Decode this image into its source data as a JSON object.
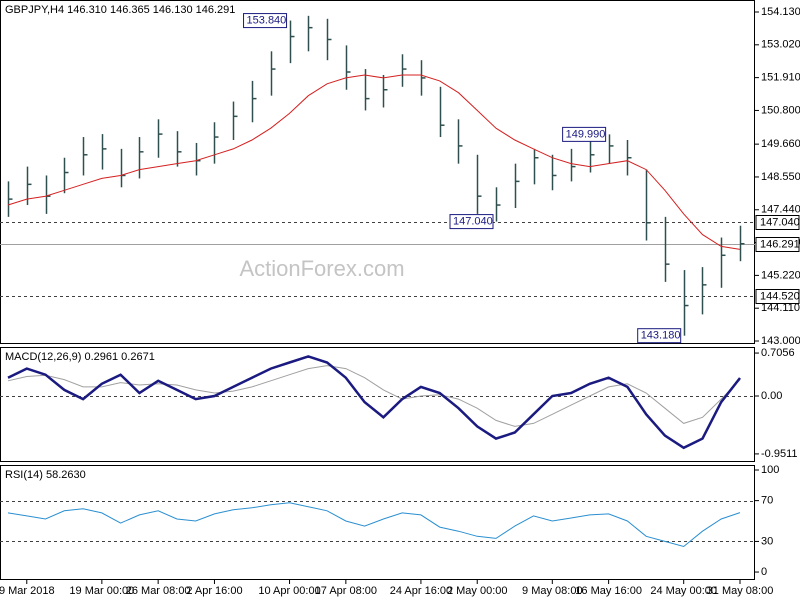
{
  "chart_data": [
    {
      "type": "ohlc",
      "title": "GBPJPY,H4  146.310 146.365 146.130 146.291",
      "watermark": "ActionForex.com",
      "bar_color": "#2f4f4f",
      "ohlc": {
        "high": [
          148.4,
          148.9,
          148.6,
          149.2,
          149.9,
          150.0,
          149.5,
          149.9,
          150.5,
          150.1,
          149.7,
          150.4,
          151.1,
          151.8,
          152.8,
          153.84,
          154.0,
          153.9,
          153.0,
          152.2,
          152.0,
          152.7,
          152.5,
          151.6,
          150.5,
          149.3,
          148.2,
          149.0,
          149.5,
          149.3,
          149.5,
          149.8,
          149.99,
          149.8,
          148.8,
          147.2,
          145.4,
          145.5,
          146.5,
          146.9
        ],
        "low": [
          147.2,
          147.6,
          147.3,
          148.0,
          148.6,
          148.8,
          148.2,
          148.5,
          149.2,
          148.9,
          148.6,
          149.0,
          149.8,
          150.4,
          151.3,
          152.4,
          152.8,
          152.5,
          151.5,
          150.8,
          150.9,
          151.6,
          151.3,
          149.9,
          149.0,
          147.3,
          147.04,
          147.5,
          148.3,
          148.1,
          148.4,
          148.7,
          149.0,
          148.6,
          146.4,
          145.0,
          143.18,
          143.9,
          144.8,
          145.7
        ],
        "close": [
          147.8,
          148.3,
          147.9,
          148.7,
          149.3,
          149.5,
          148.6,
          149.4,
          150.0,
          149.4,
          149.1,
          149.9,
          150.6,
          151.2,
          152.2,
          153.3,
          153.6,
          153.2,
          152.1,
          151.2,
          151.5,
          152.2,
          151.9,
          150.3,
          149.6,
          147.9,
          147.6,
          148.4,
          149.2,
          148.6,
          148.9,
          149.3,
          149.6,
          149.2,
          147.0,
          145.6,
          144.2,
          144.9,
          145.9,
          146.291
        ]
      },
      "series": [
        {
          "color": "#d42020",
          "width": 1,
          "values": [
            147.6,
            147.8,
            147.9,
            148.1,
            148.3,
            148.5,
            148.6,
            148.8,
            148.9,
            149.0,
            149.1,
            149.3,
            149.5,
            149.8,
            150.2,
            150.7,
            151.3,
            151.7,
            151.9,
            152.0,
            151.9,
            152.0,
            152.0,
            151.8,
            151.4,
            150.8,
            150.2,
            149.8,
            149.5,
            149.2,
            149.0,
            148.9,
            149.0,
            149.1,
            148.8,
            148.1,
            147.3,
            146.6,
            146.2,
            146.1
          ]
        }
      ],
      "annotations": [
        {
          "value": 153.84,
          "label": "153.840"
        },
        {
          "value": 147.04,
          "label": "147.040"
        },
        {
          "value": 149.99,
          "label": "149.990"
        },
        {
          "value": 143.18,
          "label": "143.180"
        }
      ],
      "levels": [
        {
          "value": 147.04,
          "label": "147.040",
          "style": "dashed"
        },
        {
          "value": 146.291,
          "label": "146.291",
          "style": "solid"
        },
        {
          "value": 144.52,
          "label": "144.520",
          "style": "dashed"
        }
      ],
      "ylim": [
        142.899,
        154.536
      ],
      "yticks": [
        {
          "value": 154.13,
          "label": "154.130"
        },
        {
          "value": 153.02,
          "label": "153.020"
        },
        {
          "value": 151.91,
          "label": "151.910"
        },
        {
          "value": 150.8,
          "label": "150.800"
        },
        {
          "value": 149.66,
          "label": "149.660"
        },
        {
          "value": 148.55,
          "label": "148.550"
        },
        {
          "value": 147.44,
          "label": "147.440"
        },
        {
          "value": 146.33,
          "label": "146.330"
        },
        {
          "value": 145.22,
          "label": "145.220"
        },
        {
          "value": 144.11,
          "label": "144.110"
        },
        {
          "value": 143.0,
          "label": "143.000"
        }
      ]
    },
    {
      "type": "line",
      "title": "MACD(12,26,9) 0.2961 0.2671",
      "series": [
        {
          "color": "#a0a0a0",
          "width": 1,
          "values": [
            0.25,
            0.32,
            0.34,
            0.27,
            0.15,
            0.15,
            0.22,
            0.18,
            0.2,
            0.18,
            0.1,
            0.05,
            0.08,
            0.15,
            0.25,
            0.35,
            0.45,
            0.5,
            0.45,
            0.3,
            0.1,
            -0.05,
            0.0,
            0.02,
            -0.05,
            -0.2,
            -0.4,
            -0.5,
            -0.45,
            -0.3,
            -0.15,
            0.0,
            0.15,
            0.2,
            0.05,
            -0.2,
            -0.45,
            -0.35,
            -0.05,
            0.2671
          ]
        },
        {
          "color": "#1a1a80",
          "width": 2.5,
          "values": [
            0.3,
            0.45,
            0.35,
            0.1,
            -0.05,
            0.2,
            0.35,
            0.05,
            0.25,
            0.1,
            -0.05,
            0.0,
            0.15,
            0.3,
            0.45,
            0.55,
            0.65,
            0.55,
            0.3,
            -0.1,
            -0.35,
            -0.05,
            0.15,
            0.05,
            -0.2,
            -0.5,
            -0.7,
            -0.6,
            -0.3,
            0.0,
            0.05,
            0.2,
            0.3,
            0.15,
            -0.3,
            -0.65,
            -0.85,
            -0.7,
            -0.1,
            0.2961
          ]
        }
      ],
      "levels": [
        0
      ],
      "ylim": [
        -1.084,
        0.805
      ],
      "yticks": [
        0.7056,
        {
          "value": 0,
          "label": "0.00"
        },
        -0.9511
      ]
    },
    {
      "type": "line",
      "title": "RSI(14) 58.2630",
      "series": [
        {
          "color": "#2a8fd0",
          "width": 1,
          "values": [
            58,
            55,
            52,
            60,
            62,
            58,
            48,
            56,
            60,
            52,
            50,
            57,
            61,
            63,
            66,
            68,
            64,
            60,
            50,
            45,
            52,
            58,
            56,
            44,
            40,
            35,
            33,
            45,
            55,
            50,
            53,
            56,
            57,
            50,
            35,
            30,
            25,
            40,
            52,
            58.263
          ]
        }
      ],
      "levels": [
        70,
        30
      ],
      "ylim": [
        -7.8,
        104.9
      ],
      "yticks": [
        100,
        70,
        30,
        0
      ],
      "categories": [
        null,
        "9 Mar 2018",
        null,
        null,
        null,
        "19 Mar 00:00",
        null,
        null,
        "26 Mar 08:00",
        null,
        null,
        "2 Apr 16:00",
        null,
        null,
        null,
        "10 Apr 00:00",
        null,
        null,
        "17 Apr 08:00",
        null,
        null,
        null,
        "24 Apr 16:00",
        null,
        null,
        "2 May 00:00",
        null,
        null,
        null,
        "9 May 08:00",
        null,
        null,
        "16 May 16:00",
        null,
        null,
        null,
        "24 May 00:00",
        null,
        null,
        "31 May 08:00"
      ]
    }
  ]
}
